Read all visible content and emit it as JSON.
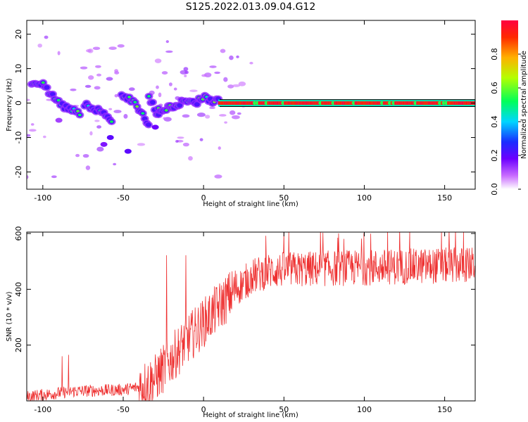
{
  "title": "S125.2022.013.09.04.G12",
  "chart_data": [
    {
      "type": "heatmap",
      "xlabel": "Height of straight line (km)",
      "ylabel": "Frequency (Hz)",
      "xlim": [
        -110,
        169
      ],
      "ylim": [
        -25,
        24
      ],
      "xticks": [
        -100,
        -50,
        0,
        50,
        100,
        150
      ],
      "yticks": [
        -20,
        -10,
        0,
        10,
        20
      ],
      "colorbar": {
        "label": "Normalized spectral amplitude",
        "range": [
          0,
          1
        ],
        "ticks": [
          "0.0",
          "0.2",
          "0.4",
          "0.6",
          "0.8"
        ],
        "colormap": "gist_rainbow_r"
      },
      "reference_lines": [
        {
          "y": 1,
          "color": "#000000"
        },
        {
          "y": -1,
          "color": "#000000"
        }
      ],
      "tracks": [
        {
          "x": [
            -107,
            -100,
            -94,
            -87,
            -80,
            -76
          ],
          "y": [
            5.8,
            5.5,
            2.0,
            -1.0,
            -2.5,
            -3.5
          ],
          "amplitude": 0.35
        },
        {
          "x": [
            -74,
            -68,
            -62,
            -57
          ],
          "y": [
            -0.5,
            -1.5,
            -3.0,
            -5.0
          ],
          "amplitude": 0.35
        },
        {
          "x": [
            -51,
            -45,
            -40,
            -36,
            -33
          ],
          "y": [
            2.5,
            1.0,
            -2.0,
            -5.0,
            -7.5
          ],
          "amplitude": 0.35
        },
        {
          "x": [
            -34,
            -30,
            -27
          ],
          "y": [
            2.0,
            -2.0,
            -5.0
          ],
          "amplitude": 0.3
        },
        {
          "x": [
            -28,
            -20,
            -10,
            -4,
            0,
            5,
            10
          ],
          "y": [
            -2.0,
            -1.0,
            1.0,
            0.3,
            1.8,
            0.5,
            0.5
          ],
          "amplitude": 0.45
        },
        {
          "x": [
            10,
            169
          ],
          "y": [
            0,
            0
          ],
          "amplitude": 0.95
        }
      ]
    },
    {
      "type": "line",
      "xlabel": "Height of straight line (km)",
      "ylabel": "SNR (10 * v/v)",
      "xlim": [
        -110,
        169
      ],
      "ylim": [
        0,
        605
      ],
      "xticks": [
        -100,
        -50,
        0,
        50,
        100,
        150
      ],
      "yticks": [
        200,
        400,
        600
      ],
      "color": "#ee3030",
      "trend": {
        "x": [
          -110,
          -80,
          -50,
          -40,
          -30,
          -20,
          -10,
          0,
          10,
          20,
          30,
          40,
          50,
          80,
          100,
          130,
          150,
          169
        ],
        "y": [
          15,
          35,
          40,
          50,
          80,
          150,
          220,
          280,
          340,
          400,
          445,
          465,
          470,
          475,
          478,
          482,
          485,
          488
        ]
      },
      "spikes": [
        {
          "x": -23,
          "y": 522
        },
        {
          "x": -11,
          "y": 522
        },
        {
          "x": -84,
          "y": 165
        },
        {
          "x": -88,
          "y": 160
        }
      ]
    }
  ]
}
